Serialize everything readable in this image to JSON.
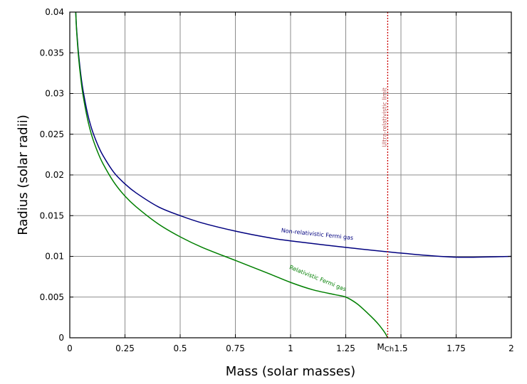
{
  "chart_data": {
    "type": "line",
    "xlabel": "Mass (solar masses)",
    "ylabel": "Radius (solar radii)",
    "xlim": [
      0,
      2
    ],
    "ylim": [
      0,
      0.04
    ],
    "x_ticks": [
      {
        "value": 0,
        "label": "0"
      },
      {
        "value": 0.25,
        "label": "0.25"
      },
      {
        "value": 0.5,
        "label": "0.5"
      },
      {
        "value": 0.75,
        "label": "0.75"
      },
      {
        "value": 1,
        "label": "1"
      },
      {
        "value": 1.25,
        "label": "1.25"
      },
      {
        "value": 1.5,
        "label": "1.5"
      },
      {
        "value": 1.75,
        "label": "1.75"
      },
      {
        "value": 2,
        "label": "2"
      }
    ],
    "y_ticks": [
      {
        "value": 0,
        "label": "0"
      },
      {
        "value": 0.005,
        "label": "0.005"
      },
      {
        "value": 0.01,
        "label": "0.01"
      },
      {
        "value": 0.015,
        "label": "0.015"
      },
      {
        "value": 0.02,
        "label": "0.02"
      },
      {
        "value": 0.025,
        "label": "0.025"
      },
      {
        "value": 0.03,
        "label": "0.03"
      },
      {
        "value": 0.035,
        "label": "0.035"
      },
      {
        "value": 0.04,
        "label": "0.04"
      }
    ],
    "grid": true,
    "series": [
      {
        "name": "Non-relativistic Fermi gas",
        "color": "#00007f",
        "x": [
          0.027,
          0.03,
          0.035,
          0.04,
          0.05,
          0.06,
          0.08,
          0.1,
          0.125,
          0.15,
          0.2,
          0.25,
          0.3,
          0.4,
          0.5,
          0.6,
          0.75,
          0.9,
          1.0,
          1.25,
          1.5,
          1.75,
          2.0
        ],
        "y": [
          0.04,
          0.0383,
          0.0364,
          0.0348,
          0.0323,
          0.0304,
          0.0276,
          0.0256,
          0.0238,
          0.0224,
          0.0203,
          0.0189,
          0.0178,
          0.0161,
          0.015,
          0.0141,
          0.0131,
          0.0123,
          0.0119,
          0.0111,
          0.0104,
          0.0099,
          0.01
        ]
      },
      {
        "name": "Relativistic Fermi gas",
        "color": "#007f00",
        "x": [
          0.027,
          0.03,
          0.035,
          0.04,
          0.05,
          0.06,
          0.08,
          0.1,
          0.125,
          0.15,
          0.2,
          0.25,
          0.3,
          0.4,
          0.5,
          0.6,
          0.75,
          0.9,
          1.0,
          1.1,
          1.2,
          1.25,
          1.3,
          1.35,
          1.38,
          1.4,
          1.42,
          1.43,
          1.44
        ],
        "y": [
          0.04,
          0.0381,
          0.0361,
          0.0344,
          0.0318,
          0.0298,
          0.0269,
          0.0248,
          0.0229,
          0.0214,
          0.0191,
          0.0174,
          0.0161,
          0.014,
          0.0124,
          0.0111,
          0.0095,
          0.0079,
          0.0068,
          0.0059,
          0.0053,
          0.005,
          0.0042,
          0.003,
          0.0022,
          0.0016,
          0.0009,
          0.0005,
          0.0
        ]
      }
    ],
    "vline": {
      "x": 1.44,
      "color": "#cc0000",
      "label": "Ultra-relativistic limit",
      "tick_label": "M",
      "tick_label_sub": "Ch"
    },
    "annotations": [
      {
        "text": "Non-relativistic Fermi gas",
        "x": 1.12,
        "y": 0.0125,
        "angle": 6,
        "color": "#00007f"
      },
      {
        "text": "Relativistic Fermi gas",
        "x": 1.12,
        "y": 0.0071,
        "angle": 22,
        "color": "#007f00"
      }
    ]
  }
}
